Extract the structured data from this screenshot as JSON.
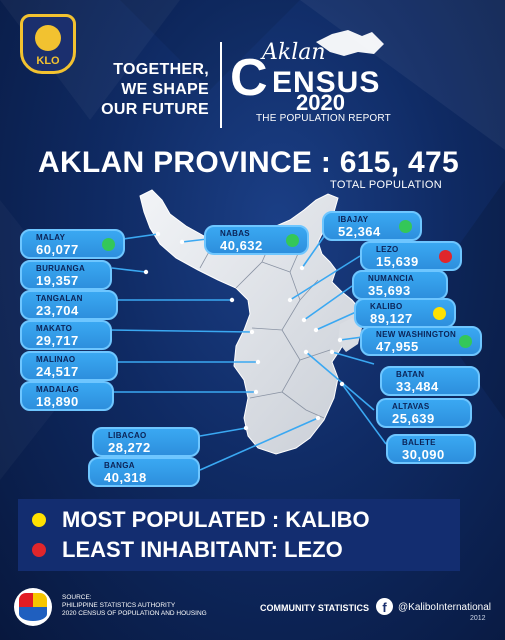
{
  "header": {
    "logo_text": "KLO",
    "tagline": [
      "TOGETHER,",
      "WE SHAPE",
      "OUR FUTURE"
    ],
    "census_aklan": "Aklan",
    "census_c": "C",
    "census_word": "ENSUS",
    "census_year": "2020",
    "census_subtitle": "THE POPULATION REPORT"
  },
  "headline": {
    "text": "AKLAN PROVINCE : 615, 475",
    "total_label": "TOTAL POPULATION"
  },
  "municipalities": [
    {
      "name": "MALAY",
      "value": "60,077",
      "marker": "green"
    },
    {
      "name": "BURUANGA",
      "value": "19,357",
      "marker": ""
    },
    {
      "name": "TANGALAN",
      "value": "23,704",
      "marker": ""
    },
    {
      "name": "MAKATO",
      "value": "29,717",
      "marker": ""
    },
    {
      "name": "MALINAO",
      "value": "24,517",
      "marker": ""
    },
    {
      "name": "MADALAG",
      "value": "18,890",
      "marker": ""
    },
    {
      "name": "NABAS",
      "value": "40,632",
      "marker": "green"
    },
    {
      "name": "IBAJAY",
      "value": "52,364",
      "marker": "green"
    },
    {
      "name": "LEZO",
      "value": "15,639",
      "marker": "red"
    },
    {
      "name": "NUMANCIA",
      "value": "35,693",
      "marker": ""
    },
    {
      "name": "KALIBO",
      "value": "89,127",
      "marker": "yellow"
    },
    {
      "name": "NEW WASHINGTON",
      "value": "47,955",
      "marker": "green"
    },
    {
      "name": "BATAN",
      "value": "33,484",
      "marker": ""
    },
    {
      "name": "ALTAVAS",
      "value": "25,639",
      "marker": ""
    },
    {
      "name": "BALETE",
      "value": "30,090",
      "marker": ""
    },
    {
      "name": "LIBACAO",
      "value": "28,272",
      "marker": ""
    },
    {
      "name": "BANGA",
      "value": "40,318",
      "marker": ""
    }
  ],
  "legend": {
    "most": "MOST POPULATED : KALIBO",
    "least": "LEAST INHABITANT: LEZO"
  },
  "footer": {
    "source_lines": [
      "SOURCE:",
      "PHILIPPINE STATISTICS AUTHORITY",
      "2020 CENSUS OF POPULATION AND HOUSING"
    ],
    "community": "COMMUNITY STATISTICS",
    "handle": "@KaliboInternational",
    "year": "2012"
  },
  "colors": {
    "green": "#34c759",
    "red": "#e0262b",
    "yellow": "#ffe100",
    "pill": "#3aa8f2",
    "background": "#0f2a63"
  }
}
